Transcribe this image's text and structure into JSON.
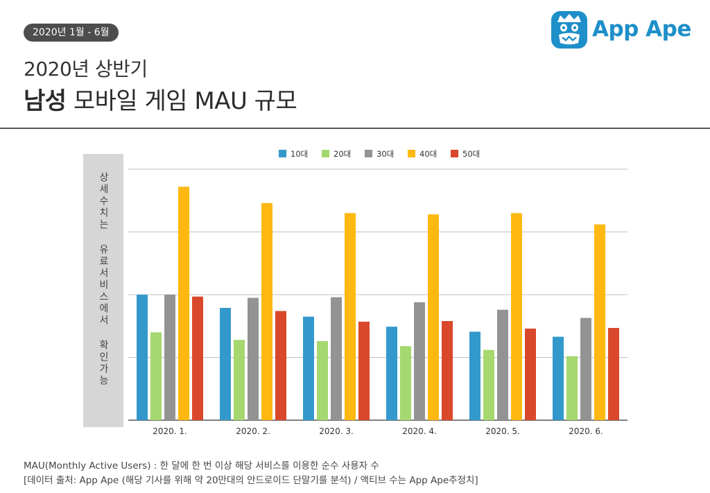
{
  "header": {
    "period": "2020년 1월 - 6월",
    "title_line1": "2020년 상반기",
    "title_bold": "남성",
    "title_rest": " 모바일 게임 MAU 규모"
  },
  "brand": {
    "name": "App Ape",
    "color": "#1e8fc9"
  },
  "side_note": "상세수치는 유료서비스에서 확인가능",
  "footer": {
    "line1": "MAU(Monthly Active Users) : 한 달에 한 번 이상 해당 서비스를 이용한 순수 사용자 수",
    "line2": "[데이터 출처: App Ape (해당 기사를 위해 약 20만대의 안드로이드 단말기를 분석) / 액티브 수는 App Ape추정치]"
  },
  "chart_data": {
    "type": "bar",
    "title": "2020년 상반기 남성 모바일 게임 MAU 규모",
    "xlabel": "",
    "ylabel": "",
    "y_tick_labels_shown": false,
    "grid": true,
    "legend_position": "top-center",
    "ylim": [
      0,
      4
    ],
    "categories": [
      "2020. 1.",
      "2020. 2.",
      "2020. 3.",
      "2020. 4.",
      "2020. 5.",
      "2020. 6."
    ],
    "series": [
      {
        "name": "10대",
        "color": "#3399cc",
        "values": [
          2.0,
          1.79,
          1.65,
          1.49,
          1.41,
          1.33
        ]
      },
      {
        "name": "20대",
        "color": "#a5d86e",
        "values": [
          1.4,
          1.28,
          1.26,
          1.18,
          1.12,
          1.02
        ]
      },
      {
        "name": "30대",
        "color": "#939393",
        "values": [
          2.0,
          1.95,
          1.96,
          1.88,
          1.76,
          1.63
        ]
      },
      {
        "name": "40대",
        "color": "#fdb812",
        "values": [
          3.72,
          3.46,
          3.3,
          3.28,
          3.3,
          3.12
        ]
      },
      {
        "name": "50대",
        "color": "#d9482b",
        "values": [
          1.97,
          1.74,
          1.57,
          1.58,
          1.46,
          1.47
        ]
      }
    ]
  }
}
